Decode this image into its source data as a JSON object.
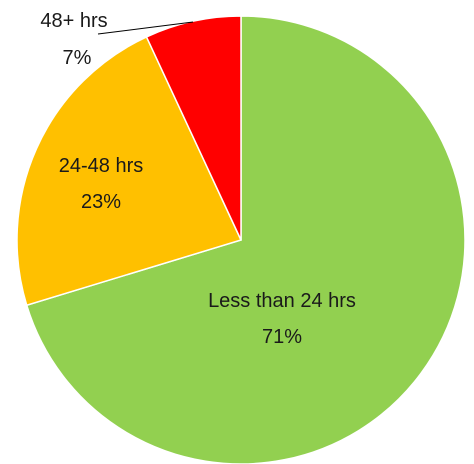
{
  "chart_data": {
    "type": "pie",
    "slices": [
      {
        "label": "Less than 24 hrs",
        "value": 71,
        "value_label": "71%",
        "color": "#92d050"
      },
      {
        "label": "24-48 hrs",
        "value": 23,
        "value_label": "23%",
        "color": "#ffc000"
      },
      {
        "label": "48+ hrs",
        "value": 7,
        "value_label": "7%",
        "color": "#ff0000"
      }
    ],
    "start_angle": "12 o'clock",
    "direction": "clockwise",
    "legend": "none"
  }
}
